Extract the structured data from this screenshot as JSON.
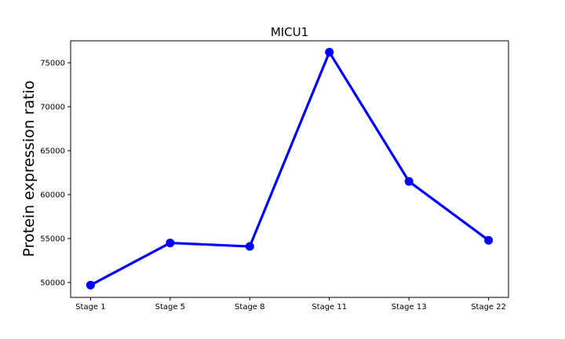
{
  "chart_data": {
    "type": "line",
    "title": "MICU1",
    "xlabel": "",
    "ylabel": "Protein expression ratio",
    "categories": [
      "Stage 1",
      "Stage 5",
      "Stage 8",
      "Stage 11",
      "Stage 13",
      "Stage 22"
    ],
    "series": [
      {
        "values": [
          49700,
          54500,
          54100,
          76200,
          61500,
          54800
        ],
        "color": "#0000ff"
      }
    ],
    "yticks": [
      50000,
      55000,
      60000,
      65000,
      70000,
      75000
    ],
    "ylim": [
      48300,
      77500
    ],
    "grid": false,
    "legend": "none"
  }
}
